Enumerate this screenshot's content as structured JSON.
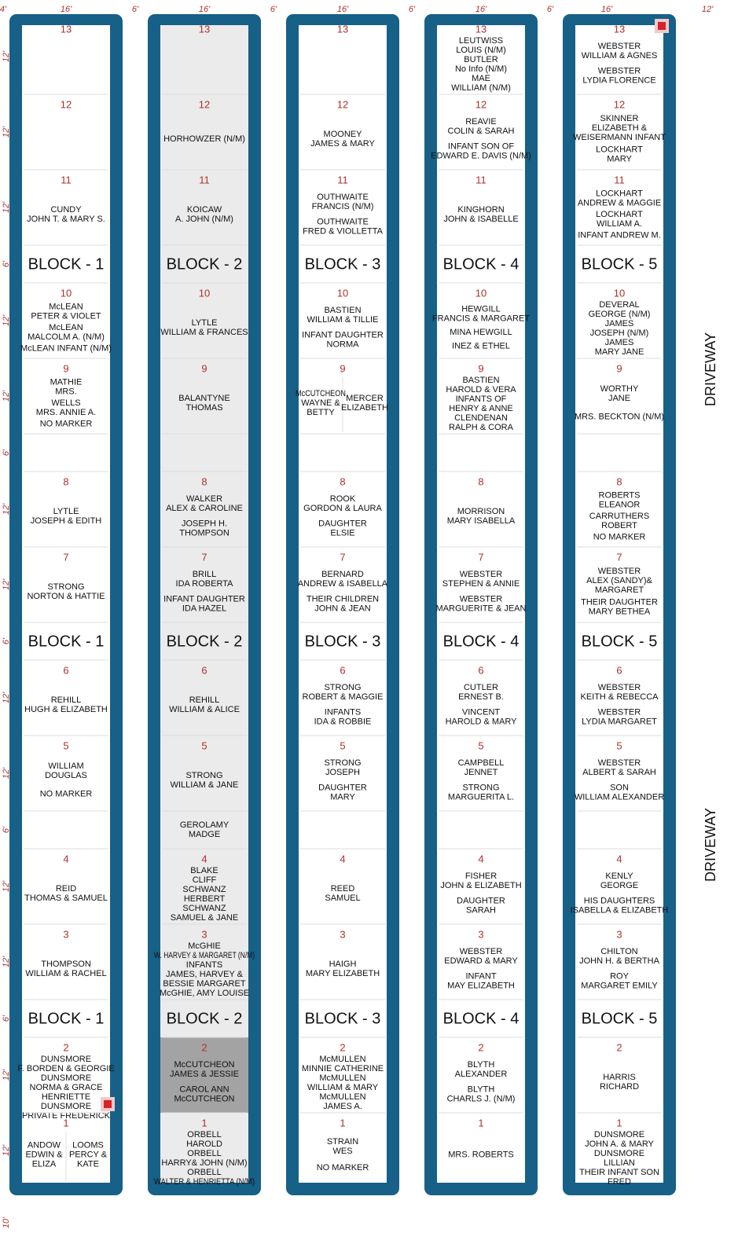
{
  "scale": {
    "top": [
      "4'",
      "16'",
      "6'",
      "16'",
      "6'",
      "16'",
      "6'",
      "16'",
      "6'",
      "16'",
      "12'"
    ],
    "side": [
      "12'",
      "12'",
      "12'",
      "6'",
      "12'",
      "12'",
      "6'",
      "12'",
      "12'",
      "6'",
      "12'",
      "12'",
      "6'",
      "12'",
      "12'",
      "6'",
      "12'",
      "12'"
    ],
    "bottom": "10'"
  },
  "driveway_labels": [
    "DRIVEWAY",
    "DRIVEWAY"
  ],
  "columns": [
    {
      "rows": [
        {
          "number": "13"
        },
        {
          "number": "12"
        },
        {
          "number": "11",
          "groups": [
            [
              "CUNDY",
              "JOHN T. & MARY S."
            ]
          ]
        },
        {
          "label": "BLOCK - 1"
        },
        {
          "number": "10",
          "groups": [
            [
              "McLEAN",
              "PETER & VIOLET"
            ],
            [
              "McLEAN",
              "MALCOLM A. (N/M)"
            ],
            [
              "McLEAN INFANT (N/M)"
            ]
          ]
        },
        {
          "number": "9",
          "groups": [
            [
              "MATHIE",
              "MRS."
            ],
            [
              "WELLS",
              "MRS. ANNIE A."
            ],
            [
              "NO MARKER"
            ]
          ]
        },
        null,
        {
          "number": "8",
          "groups": [
            [
              "LYTLE",
              "JOSEPH & EDITH"
            ]
          ]
        },
        {
          "number": "7",
          "groups": [
            [
              "STRONG",
              "NORTON & HATTIE"
            ]
          ]
        },
        {
          "label": "BLOCK - 1"
        },
        {
          "number": "6",
          "groups": [
            [
              "REHILL",
              "HUGH & ELIZABETH"
            ]
          ]
        },
        {
          "number": "5",
          "groups": [
            [
              "WILLIAM",
              "DOUGLAS"
            ],
            [
              "NO MARKER"
            ]
          ]
        },
        null,
        {
          "number": "4",
          "groups": [
            [
              "REID",
              "THOMAS & SAMUEL"
            ]
          ]
        },
        {
          "number": "3",
          "groups": [
            [
              "THOMPSON",
              "WILLIAM & RACHEL"
            ]
          ]
        },
        {
          "label": "BLOCK - 1"
        },
        {
          "number": "2",
          "groups": [
            [
              "DUNSMORE",
              "F. BORDEN & GEORGIE"
            ],
            [
              "DUNSMORE",
              "NORMA & GRACE",
              "HENRIETTE"
            ],
            [
              "DUNSMORE",
              "PRIVATE FREDERICK"
            ]
          ]
        },
        {
          "number": "1",
          "left": [
            [
              "ANDOW",
              "EDWIN &",
              "ELIZA"
            ]
          ],
          "right": [
            [
              "LOOMS",
              "PERCY &",
              "KATE"
            ]
          ]
        }
      ]
    },
    {
      "fill": "#ebebeb",
      "rows": [
        {
          "number": "13"
        },
        {
          "number": "12",
          "groups": [
            [
              "HORHOWZER (N/M)"
            ]
          ]
        },
        {
          "number": "11",
          "groups": [
            [
              "KOICAW",
              "A. JOHN (N/M)"
            ]
          ]
        },
        {
          "label": "BLOCK - 2"
        },
        {
          "number": "10",
          "groups": [
            [
              "LYTLE",
              "WILLIAM & FRANCES"
            ]
          ]
        },
        {
          "number": "9",
          "groups": [
            [
              "BALANTYNE",
              "THOMAS"
            ]
          ]
        },
        null,
        {
          "number": "8",
          "groups": [
            [
              "WALKER",
              "ALEX & CAROLINE"
            ],
            [
              "JOSEPH H.",
              "THOMPSON"
            ]
          ]
        },
        {
          "number": "7",
          "groups": [
            [
              "BRILL",
              "IDA ROBERTA"
            ],
            [
              "INFANT DAUGHTER",
              "IDA HAZEL"
            ]
          ]
        },
        {
          "label": "BLOCK - 2"
        },
        {
          "number": "6",
          "groups": [
            [
              "REHILL",
              "WILLIAM & ALICE"
            ]
          ]
        },
        {
          "number": "5",
          "groups": [
            [
              "STRONG",
              "WILLIAM & JANE"
            ]
          ]
        },
        {
          "groups": [
            [
              "GEROLAMY",
              "MADGE"
            ]
          ]
        },
        {
          "number": "4",
          "groups": [
            [
              "BLAKE",
              "CLIFF"
            ],
            [
              "SCHWANZ",
              "HERBERT"
            ],
            [
              "SCHWANZ",
              "SAMUEL & JANE"
            ]
          ]
        },
        {
          "number": "3",
          "groups": [
            [
              "McGHIE",
              "W. HARVEY & MARGARET (N/M)"
            ],
            [
              "INFANTS",
              "JAMES, HARVEY &",
              "BESSIE MARGARET"
            ],
            [
              "McGHIE, AMY LOUISE"
            ]
          ]
        },
        {
          "label": "BLOCK - 2"
        },
        {
          "number": "2",
          "fill": "#a3a3a3",
          "groups": [
            [
              "McCUTCHEON",
              "JAMES & JESSIE"
            ],
            [
              "CAROL ANN",
              "McCUTCHEON"
            ]
          ]
        },
        {
          "number": "1",
          "groups": [
            [
              "ORBELL",
              "HAROLD"
            ],
            [
              "ORBELL",
              "HARRY& JOHN (N/M)"
            ],
            [
              "ORBELL",
              "WALTER & HENRIETTA (N/M)"
            ]
          ]
        }
      ]
    },
    {
      "rows": [
        {
          "number": "13"
        },
        {
          "number": "12",
          "groups": [
            [
              "MOONEY",
              "JAMES & MARY"
            ]
          ]
        },
        {
          "number": "11",
          "groups": [
            [
              "OUTHWAITE",
              "FRANCIS (N/M)"
            ],
            [
              "OUTHWAITE",
              "FRED & VIOLLETTA"
            ]
          ]
        },
        {
          "label": "BLOCK - 3"
        },
        {
          "number": "10",
          "groups": [
            [
              "BASTIEN",
              "WILLIAM & TILLIE"
            ],
            [
              "INFANT DAUGHTER",
              "NORMA"
            ]
          ]
        },
        {
          "number": "9",
          "left": [
            [
              "McCUTCHEON",
              "WAYNE &",
              "BETTY"
            ]
          ],
          "right": [
            [
              "MERCER",
              "ELIZABETH"
            ]
          ]
        },
        null,
        {
          "number": "8",
          "groups": [
            [
              "ROOK",
              "GORDON & LAURA"
            ],
            [
              "DAUGHTER",
              "ELSIE"
            ]
          ]
        },
        {
          "number": "7",
          "groups": [
            [
              "BERNARD",
              "ANDREW & ISABELLA"
            ],
            [
              "THEIR CHILDREN",
              "JOHN & JEAN"
            ]
          ]
        },
        {
          "label": "BLOCK - 3"
        },
        {
          "number": "6",
          "groups": [
            [
              "STRONG",
              "ROBERT & MAGGIE"
            ],
            [
              "INFANTS",
              "IDA & ROBBIE"
            ]
          ]
        },
        {
          "number": "5",
          "groups": [
            [
              "STRONG",
              "JOSEPH"
            ],
            [
              "DAUGHTER",
              "MARY"
            ]
          ]
        },
        null,
        {
          "number": "4",
          "groups": [
            [
              "REED",
              "SAMUEL"
            ]
          ]
        },
        {
          "number": "3",
          "groups": [
            [
              "HAIGH",
              "MARY ELIZABETH"
            ]
          ]
        },
        {
          "label": "BLOCK - 3"
        },
        {
          "number": "2",
          "groups": [
            [
              "McMULLEN",
              "MINNIE CATHERINE"
            ],
            [
              "McMULLEN",
              "WILLIAM & MARY"
            ],
            [
              "McMULLEN",
              "JAMES A."
            ]
          ]
        },
        {
          "number": "1",
          "groups": [
            [
              "STRAIN",
              "WES"
            ],
            [
              "NO MARKER"
            ]
          ]
        }
      ]
    },
    {
      "rows": [
        {
          "number": "13",
          "groups": [
            [
              "LEUTWISS",
              "LOUIS (N/M)"
            ],
            [
              "BUTLER",
              "No Info (N/M)"
            ],
            [
              "MAE",
              "WILLIAM (N/M)"
            ]
          ]
        },
        {
          "number": "12",
          "groups": [
            [
              "REAVIE",
              "COLIN & SARAH"
            ],
            [
              "INFANT SON OF",
              "EDWARD E. DAVIS (N/M)"
            ]
          ]
        },
        {
          "number": "11",
          "groups": [
            [
              "KINGHORN",
              "JOHN & ISABELLE"
            ]
          ]
        },
        {
          "label": "BLOCK - 4"
        },
        {
          "number": "10",
          "groups": [
            [
              "HEWGILL",
              "FRANCIS & MARGARET"
            ],
            [
              "MINA HEWGILL"
            ],
            [
              "INEZ & ETHEL"
            ]
          ]
        },
        {
          "number": "9",
          "groups": [
            [
              "BASTIEN",
              "HAROLD & VERA",
              "INFANTS OF",
              "HENRY & ANNE"
            ],
            [
              "CLENDENAN",
              "RALPH & CORA"
            ]
          ]
        },
        null,
        {
          "number": "8",
          "groups": [
            [
              "MORRISON",
              "MARY ISABELLA"
            ]
          ]
        },
        {
          "number": "7",
          "groups": [
            [
              "WEBSTER",
              "STEPHEN & ANNIE"
            ],
            [
              "WEBSTER",
              "MARGUERITE & JEAN"
            ]
          ]
        },
        {
          "label": "BLOCK - 4"
        },
        {
          "number": "6",
          "groups": [
            [
              "CUTLER",
              "ERNEST B."
            ],
            [
              "VINCENT",
              "HAROLD & MARY"
            ]
          ]
        },
        {
          "number": "5",
          "groups": [
            [
              "CAMPBELL",
              "JENNET"
            ],
            [
              "STRONG",
              "MARGUERITA L."
            ]
          ]
        },
        null,
        {
          "number": "4",
          "groups": [
            [
              "FISHER",
              "JOHN & ELIZABETH"
            ],
            [
              "DAUGHTER",
              "SARAH"
            ]
          ]
        },
        {
          "number": "3",
          "groups": [
            [
              "WEBSTER",
              "EDWARD & MARY"
            ],
            [
              "INFANT",
              "MAY ELIZABETH"
            ]
          ]
        },
        {
          "label": "BLOCK - 4"
        },
        {
          "number": "2",
          "groups": [
            [
              "BLYTH",
              "ALEXANDER"
            ],
            [
              "BLYTH",
              "CHARLS J. (N/M)"
            ]
          ]
        },
        {
          "number": "1",
          "groups": [
            [
              "MRS. ROBERTS"
            ]
          ]
        }
      ]
    },
    {
      "rows": [
        {
          "number": "13",
          "groups": [
            [
              "WEBSTER",
              "WILLIAM & AGNES"
            ],
            [
              "WEBSTER",
              "LYDIA FLORENCE"
            ]
          ]
        },
        {
          "number": "12",
          "groups": [
            [
              "SKINNER",
              "ELIZABETH &",
              "WEISERMANN INFANT"
            ],
            [
              "LOCKHART",
              "MARY"
            ]
          ]
        },
        {
          "number": "11",
          "groups": [
            [
              "LOCKHART",
              "ANDREW & MAGGIE"
            ],
            [
              "LOCKHART",
              "WILLIAM A."
            ],
            [
              "INFANT ANDREW M."
            ]
          ]
        },
        {
          "label": "BLOCK - 5"
        },
        {
          "number": "10",
          "groups": [
            [
              "DEVERAL",
              "GEORGE (N/M)"
            ],
            [
              "JAMES",
              "JOSEPH (N/M)"
            ],
            [
              "JAMES",
              "MARY JANE"
            ]
          ]
        },
        {
          "number": "9",
          "groups": [
            [
              "WORTHY",
              "JANE"
            ],
            [
              "MRS. BECKTON (N/M)"
            ]
          ]
        },
        null,
        {
          "number": "8",
          "groups": [
            [
              "ROBERTS",
              "ELEANOR"
            ],
            [
              "CARRUTHERS",
              "ROBERT"
            ],
            [
              "NO MARKER"
            ]
          ]
        },
        {
          "number": "7",
          "groups": [
            [
              "WEBSTER",
              "ALEX (SANDY)&",
              "MARGARET"
            ],
            [
              "THEIR DAUGHTER",
              "MARY BETHEA"
            ]
          ]
        },
        {
          "label": "BLOCK - 5"
        },
        {
          "number": "6",
          "groups": [
            [
              "WEBSTER",
              "KEITH & REBECCA"
            ],
            [
              "WEBSTER",
              "LYDIA MARGARET"
            ]
          ]
        },
        {
          "number": "5",
          "groups": [
            [
              "WEBSTER",
              "ALBERT & SARAH"
            ],
            [
              "SON",
              "WILLIAM ALEXANDER"
            ]
          ]
        },
        null,
        {
          "number": "4",
          "groups": [
            [
              "KENLY",
              "GEORGE"
            ],
            [
              "HIS DAUGHTERS",
              "ISABELLA & ELIZABETH"
            ]
          ]
        },
        {
          "number": "3",
          "groups": [
            [
              "CHILTON",
              "JOHN H. & BERTHA"
            ],
            [
              "ROY",
              "MARGARET EMILY"
            ]
          ]
        },
        {
          "label": "BLOCK - 5"
        },
        {
          "number": "2",
          "groups": [
            [
              "HARRIS",
              "RICHARD"
            ]
          ]
        },
        {
          "number": "1",
          "groups": [
            [
              "DUNSMORE",
              "JOHN A. & MARY"
            ],
            [
              "DUNSMORE",
              "LILLIAN"
            ],
            [
              "THEIR INFANT SON",
              "FRED"
            ]
          ]
        }
      ]
    }
  ]
}
